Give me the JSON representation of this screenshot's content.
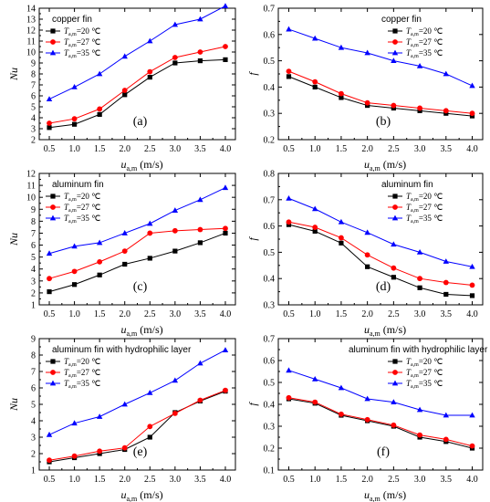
{
  "xlabel_main": "u",
  "xlabel_sub": "a,m",
  "xlabel_unit": "(m/s)",
  "legend_var_main": "T",
  "legend_var_sub": "a,m",
  "legend_entries": [
    "=20 ℃",
    "=27 ℃",
    "=35 ℃"
  ],
  "colors": {
    "series_20": "#000000",
    "series_27": "#ff0000",
    "series_35": "#0000ff"
  },
  "chart_data": [
    {
      "panel_label": "(a)",
      "material": "copper fin",
      "type": "line",
      "ylabel": "Nu",
      "ylabel_italic": true,
      "xlim": [
        0.3,
        4.2
      ],
      "ylim": [
        2,
        14
      ],
      "xticks": [
        "0.5",
        "1.0",
        "1.5",
        "2.0",
        "2.5",
        "3.0",
        "3.5",
        "4.0"
      ],
      "yticks": [
        "2",
        "3",
        "4",
        "5",
        "6",
        "7",
        "8",
        "9",
        "10",
        "11",
        "12",
        "13",
        "14"
      ],
      "x": [
        0.5,
        1.0,
        1.5,
        2.0,
        2.5,
        3.0,
        3.5,
        4.0
      ],
      "legend": "top-left",
      "series": [
        {
          "name": "20",
          "marker": "square",
          "values": [
            3.1,
            3.4,
            4.3,
            6.1,
            7.7,
            9.0,
            9.2,
            9.3
          ]
        },
        {
          "name": "27",
          "marker": "circle",
          "values": [
            3.5,
            3.9,
            4.8,
            6.5,
            8.2,
            9.5,
            10.0,
            10.5
          ]
        },
        {
          "name": "35",
          "marker": "triangle",
          "values": [
            5.7,
            6.8,
            8.0,
            9.6,
            11.0,
            12.5,
            13.0,
            14.2
          ]
        }
      ]
    },
    {
      "panel_label": "(b)",
      "material": "copper fin",
      "type": "line",
      "ylabel": "f",
      "ylabel_italic": true,
      "xlim": [
        0.3,
        4.2
      ],
      "ylim": [
        0.2,
        0.7
      ],
      "xticks": [
        "0.5",
        "1.0",
        "1.5",
        "2.0",
        "2.5",
        "3.0",
        "3.5",
        "4.0"
      ],
      "yticks": [
        "0.2",
        "0.3",
        "0.4",
        "0.5",
        "0.6",
        "0.7"
      ],
      "x": [
        0.5,
        1.0,
        1.5,
        2.0,
        2.5,
        3.0,
        3.5,
        4.0
      ],
      "legend": "top-right",
      "series": [
        {
          "name": "20",
          "marker": "square",
          "values": [
            0.44,
            0.4,
            0.36,
            0.33,
            0.32,
            0.31,
            0.3,
            0.29
          ]
        },
        {
          "name": "27",
          "marker": "circle",
          "values": [
            0.46,
            0.42,
            0.375,
            0.34,
            0.33,
            0.32,
            0.31,
            0.3
          ]
        },
        {
          "name": "35",
          "marker": "triangle",
          "values": [
            0.62,
            0.585,
            0.55,
            0.53,
            0.5,
            0.48,
            0.45,
            0.405
          ]
        }
      ]
    },
    {
      "panel_label": "(c)",
      "material": "aluminum fin",
      "type": "line",
      "ylabel": "Nu",
      "ylabel_italic": true,
      "xlim": [
        0.3,
        4.2
      ],
      "ylim": [
        1,
        12
      ],
      "xticks": [
        "0.5",
        "1.0",
        "1.5",
        "2.0",
        "2.5",
        "3.0",
        "3.5",
        "4.0"
      ],
      "yticks": [
        "1",
        "2",
        "3",
        "4",
        "5",
        "6",
        "7",
        "8",
        "9",
        "10",
        "11",
        "12"
      ],
      "x": [
        0.5,
        1.0,
        1.5,
        2.0,
        2.5,
        3.0,
        3.5,
        4.0
      ],
      "legend": "top-left",
      "series": [
        {
          "name": "20",
          "marker": "square",
          "values": [
            2.1,
            2.7,
            3.5,
            4.4,
            4.9,
            5.5,
            6.2,
            7.0
          ]
        },
        {
          "name": "27",
          "marker": "circle",
          "values": [
            3.2,
            3.8,
            4.6,
            5.5,
            7.0,
            7.2,
            7.3,
            7.4
          ]
        },
        {
          "name": "35",
          "marker": "triangle",
          "values": [
            5.3,
            5.9,
            6.2,
            7.0,
            7.8,
            8.9,
            9.8,
            10.8
          ]
        }
      ]
    },
    {
      "panel_label": "(d)",
      "material": "aluminum fin",
      "type": "line",
      "ylabel": "f",
      "ylabel_italic": true,
      "xlim": [
        0.3,
        4.2
      ],
      "ylim": [
        0.3,
        0.8
      ],
      "xticks": [
        "0.5",
        "1.0",
        "1.5",
        "2.0",
        "2.5",
        "3.0",
        "3.5",
        "4.0"
      ],
      "yticks": [
        "0.3",
        "0.4",
        "0.5",
        "0.6",
        "0.7",
        "0.8"
      ],
      "x": [
        0.5,
        1.0,
        1.5,
        2.0,
        2.5,
        3.0,
        3.5,
        4.0
      ],
      "legend": "top-right",
      "series": [
        {
          "name": "20",
          "marker": "square",
          "values": [
            0.605,
            0.58,
            0.535,
            0.445,
            0.405,
            0.365,
            0.34,
            0.335
          ]
        },
        {
          "name": "27",
          "marker": "circle",
          "values": [
            0.615,
            0.595,
            0.555,
            0.49,
            0.44,
            0.4,
            0.385,
            0.375
          ]
        },
        {
          "name": "35",
          "marker": "triangle",
          "values": [
            0.705,
            0.665,
            0.615,
            0.575,
            0.53,
            0.5,
            0.465,
            0.445
          ]
        }
      ]
    },
    {
      "panel_label": "(e)",
      "material": "aluminum fin with hydrophilic layer",
      "type": "line",
      "ylabel": "Nu",
      "ylabel_italic": true,
      "xlim": [
        0.3,
        4.2
      ],
      "ylim": [
        1,
        9
      ],
      "xticks": [
        "0.5",
        "1.0",
        "1.5",
        "2.0",
        "2.5",
        "3.0",
        "3.5",
        "4.0"
      ],
      "yticks": [
        "1",
        "2",
        "3",
        "4",
        "5",
        "6",
        "7",
        "8",
        "9"
      ],
      "x": [
        0.5,
        1.0,
        1.5,
        2.0,
        2.5,
        3.0,
        3.5,
        4.0
      ],
      "legend": "top-left",
      "series": [
        {
          "name": "20",
          "marker": "square",
          "values": [
            1.5,
            1.75,
            2.0,
            2.25,
            3.0,
            4.5,
            5.2,
            5.8
          ]
        },
        {
          "name": "27",
          "marker": "circle",
          "values": [
            1.6,
            1.85,
            2.15,
            2.35,
            3.65,
            4.45,
            5.25,
            5.85
          ]
        },
        {
          "name": "35",
          "marker": "triangle",
          "values": [
            3.15,
            3.85,
            4.25,
            5.0,
            5.7,
            6.45,
            7.5,
            8.3
          ]
        }
      ]
    },
    {
      "panel_label": "(f)",
      "material": "aluminum fin with hydrophilic layer",
      "type": "line",
      "ylabel": "f",
      "ylabel_italic": true,
      "xlim": [
        0.3,
        4.2
      ],
      "ylim": [
        0.1,
        0.7
      ],
      "xticks": [
        "0.5",
        "1.0",
        "1.5",
        "2.0",
        "2.5",
        "3.0",
        "3.5",
        "4.0"
      ],
      "yticks": [
        "0.1",
        "0.2",
        "0.3",
        "0.4",
        "0.5",
        "0.6",
        "0.7"
      ],
      "x": [
        0.5,
        1.0,
        1.5,
        2.0,
        2.5,
        3.0,
        3.5,
        4.0
      ],
      "legend": "top-right",
      "series": [
        {
          "name": "20",
          "marker": "square",
          "values": [
            0.425,
            0.405,
            0.35,
            0.325,
            0.3,
            0.25,
            0.23,
            0.2
          ]
        },
        {
          "name": "27",
          "marker": "circle",
          "values": [
            0.43,
            0.41,
            0.355,
            0.33,
            0.305,
            0.26,
            0.24,
            0.21
          ]
        },
        {
          "name": "35",
          "marker": "triangle",
          "values": [
            0.555,
            0.515,
            0.475,
            0.425,
            0.41,
            0.375,
            0.35,
            0.35
          ]
        }
      ]
    }
  ]
}
